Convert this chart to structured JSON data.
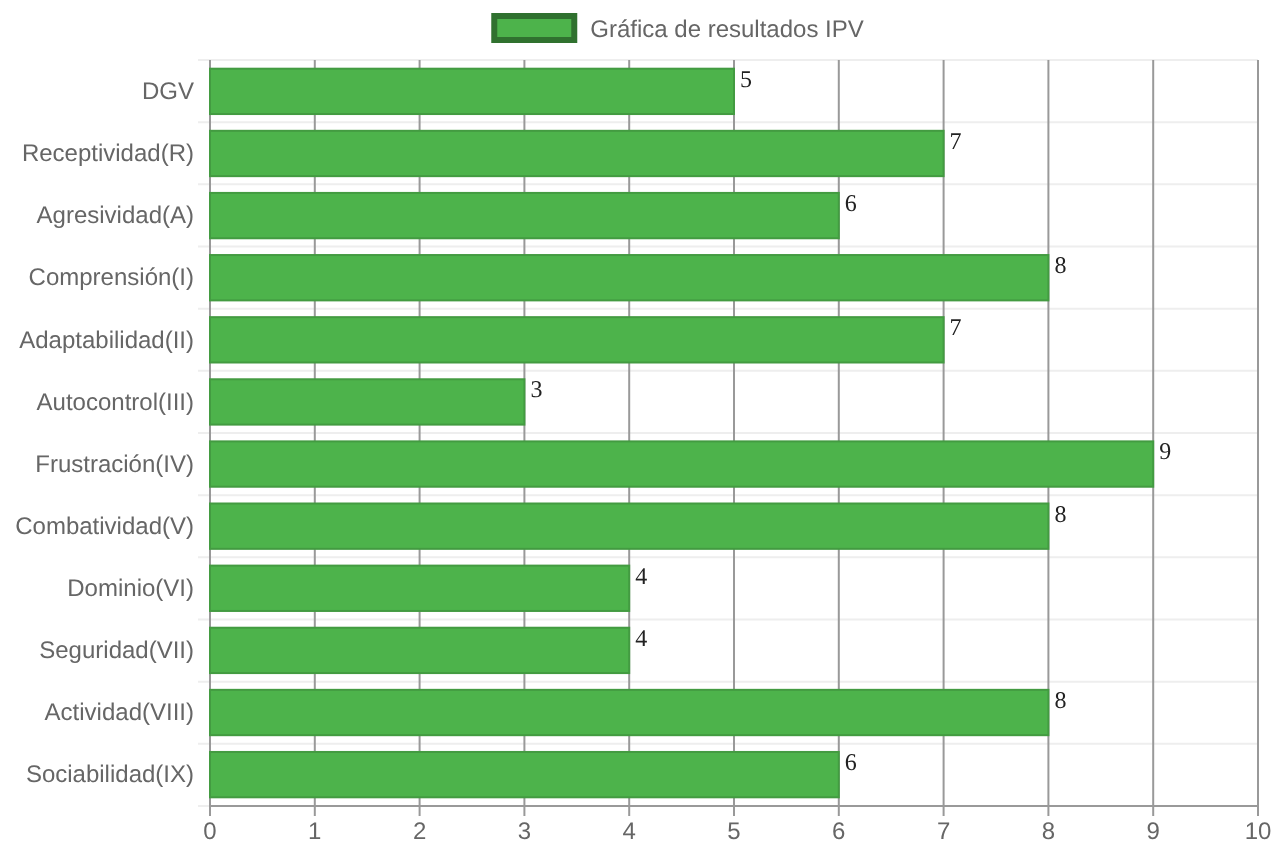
{
  "chart_data": {
    "type": "bar",
    "orientation": "horizontal",
    "categories": [
      "DGV",
      "Receptividad(R)",
      "Agresividad(A)",
      "Comprensión(I)",
      "Adaptabilidad(II)",
      "Autocontrol(III)",
      "Frustración(IV)",
      "Combatividad(V)",
      "Dominio(VI)",
      "Seguridad(VII)",
      "Actividad(VIII)",
      "Sociabilidad(IX)"
    ],
    "series": [
      {
        "name": "Gráfica de resultados IPV",
        "color": "#4db34b",
        "values": [
          5,
          7,
          6,
          8,
          7,
          3,
          9,
          8,
          4,
          4,
          8,
          6
        ]
      }
    ],
    "xlim": [
      0,
      10
    ],
    "xticks": [
      0,
      1,
      2,
      3,
      4,
      5,
      6,
      7,
      8,
      9,
      10
    ],
    "grid": "x",
    "legend": "top",
    "data_labels": true
  }
}
